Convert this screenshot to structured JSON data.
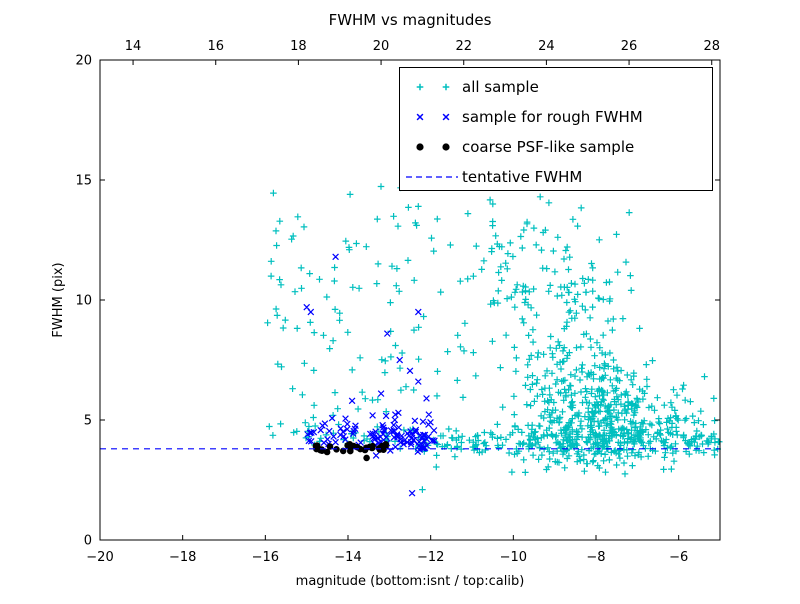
{
  "chart_data": {
    "type": "scatter",
    "title": "FWHM vs magnitudes",
    "xlabel": "magnitude (bottom:isnt / top:calib)",
    "ylabel": "FWHM (pix)",
    "xlim": [
      -20,
      -5
    ],
    "xlim_top": [
      13.2,
      28.2
    ],
    "ylim": [
      0,
      20
    ],
    "x_ticks_bottom": [
      -20,
      -18,
      -16,
      -14,
      -12,
      -10,
      -8,
      -6
    ],
    "x_ticks_top": [
      14,
      16,
      18,
      20,
      22,
      24,
      26,
      28
    ],
    "y_ticks": [
      0,
      5,
      10,
      15,
      20
    ],
    "tentative_fwhm": 3.8,
    "grid": false,
    "legend_position": "upper right",
    "legend": [
      {
        "label": "all sample",
        "marker": "plus",
        "color": "#00bfbf"
      },
      {
        "label": "sample for rough FWHM",
        "marker": "x",
        "color": "#0000ff"
      },
      {
        "label": "coarse PSF-like sample",
        "marker": "dot",
        "color": "#000000"
      },
      {
        "label": "tentative FWHM",
        "marker": "dashed-line",
        "color": "#0000ff"
      }
    ],
    "series": [
      {
        "name": "all sample",
        "marker": "plus",
        "color": "#00bfbf",
        "clusters": [
          {
            "shape": "uniform",
            "x": [
              -15.95,
              -14.75
            ],
            "y": [
              4.2,
              14.5
            ],
            "n": 38
          },
          {
            "shape": "uniform",
            "x": [
              -14.7,
              -13.55
            ],
            "y": [
              4.3,
              13.2
            ],
            "n": 26
          },
          {
            "shape": "uniform",
            "x": [
              -13.5,
              -12.15
            ],
            "y": [
              4.0,
              14.8
            ],
            "n": 40
          },
          {
            "shape": "uniform",
            "x": [
              -12.1,
              -10.35
            ],
            "y": [
              3.0,
              14.0
            ],
            "n": 26
          },
          {
            "shape": "gauss",
            "cx": -7.95,
            "cy": 4.9,
            "sx": 0.95,
            "sy": 1.15,
            "n": 460,
            "clipx": [
              -10.6,
              -5.0
            ],
            "clipy": [
              2.6,
              9.0
            ]
          },
          {
            "shape": "gauss",
            "cx": -8.7,
            "cy": 8.8,
            "sx": 1.0,
            "sy": 2.4,
            "n": 170,
            "clipx": [
              -10.9,
              -6.3
            ],
            "clipy": [
              3.0,
              14.6
            ]
          },
          {
            "shape": "gauss",
            "cx": -9.9,
            "cy": 11.5,
            "sx": 0.55,
            "sy": 1.6,
            "n": 28,
            "clipx": [
              -10.9,
              -8.9
            ],
            "clipy": [
              8.0,
              14.6
            ]
          },
          {
            "shape": "band",
            "x": [
              -15.2,
              -12.0
            ],
            "cy": 4.25,
            "sy": 0.3,
            "n": 34,
            "clipy": [
              3.6,
              5.2
            ]
          },
          {
            "shape": "band",
            "x": [
              -12.0,
              -4.95
            ],
            "cy": 4.1,
            "sy": 0.3,
            "n": 210,
            "clipy": [
              3.3,
              5.2
            ]
          },
          {
            "shape": "uniform",
            "x": [
              -6.3,
              -4.95
            ],
            "y": [
              3.7,
              6.5
            ],
            "n": 18
          }
        ],
        "points": [
          [
            -12.2,
            2.1
          ],
          [
            -11.1,
            13.6
          ],
          [
            -9.35,
            14.3
          ],
          [
            -5.15,
            5.9
          ],
          [
            -13.95,
            14.4
          ],
          [
            -12.3,
            13.9
          ]
        ]
      },
      {
        "name": "sample for rough FWHM",
        "marker": "x",
        "color": "#0000ff",
        "clusters": [
          {
            "shape": "band",
            "x": [
              -15.05,
              -13.5
            ],
            "cy": 4.45,
            "sy": 0.32,
            "n": 30,
            "clipy": [
              3.8,
              5.6
            ]
          },
          {
            "shape": "band",
            "x": [
              -13.5,
              -11.9
            ],
            "cy": 4.3,
            "sy": 0.38,
            "n": 80,
            "clipy": [
              3.5,
              5.6
            ]
          }
        ],
        "points": [
          [
            -14.3,
            11.8
          ],
          [
            -15.0,
            9.7
          ],
          [
            -14.9,
            9.5
          ],
          [
            -13.05,
            8.6
          ],
          [
            -12.3,
            9.5
          ],
          [
            -12.75,
            7.5
          ],
          [
            -12.5,
            7.05
          ],
          [
            -12.3,
            6.6
          ],
          [
            -12.1,
            5.9
          ],
          [
            -12.45,
            1.95
          ],
          [
            -13.2,
            6.1
          ],
          [
            -13.9,
            5.8
          ],
          [
            -11.95,
            4.15
          ]
        ]
      },
      {
        "name": "coarse PSF-like sample",
        "marker": "dot",
        "color": "#000000",
        "clusters": [
          {
            "shape": "band",
            "x": [
              -14.85,
              -13.05
            ],
            "cy": 3.83,
            "sy": 0.07,
            "n": 30,
            "clipy": [
              3.65,
              4.0
            ]
          }
        ],
        "points": [
          [
            -13.55,
            3.42
          ]
        ]
      }
    ]
  }
}
